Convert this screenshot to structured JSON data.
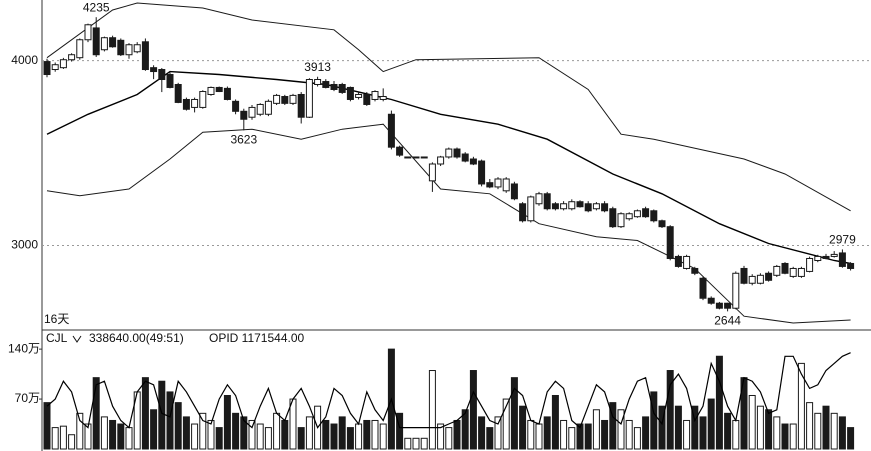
{
  "chart_data": [
    {
      "type": "candlestick",
      "period_label": "16天",
      "ylim": [
        2554,
        4328
      ],
      "yticks": [
        4000,
        3000
      ],
      "grid": true,
      "up_color": "#ffffff",
      "down_color": "#1a1a1a",
      "ohlc": [
        [
          3995,
          4010,
          3910,
          3925
        ],
        [
          3952,
          3990,
          3940,
          3978
        ],
        [
          3962,
          4015,
          3955,
          4005
        ],
        [
          4005,
          4040,
          3995,
          4032
        ],
        [
          4016,
          4120,
          4005,
          4113
        ],
        [
          4113,
          4200,
          4100,
          4194
        ],
        [
          4177,
          4235,
          4020,
          4032
        ],
        [
          4059,
          4130,
          4050,
          4124
        ],
        [
          4124,
          4135,
          4070,
          4075
        ],
        [
          4110,
          4120,
          4025,
          4032
        ],
        [
          4032,
          4095,
          4010,
          4086
        ],
        [
          4048,
          4100,
          4040,
          4086
        ],
        [
          4102,
          4120,
          3945,
          3952
        ],
        [
          3962,
          3975,
          3900,
          3941
        ],
        [
          3952,
          3960,
          3830,
          3898
        ],
        [
          3925,
          3935,
          3850,
          3855
        ],
        [
          3871,
          3880,
          3770,
          3774
        ],
        [
          3790,
          3800,
          3730,
          3737
        ],
        [
          3747,
          3800,
          3720,
          3790
        ],
        [
          3747,
          3840,
          3740,
          3833
        ],
        [
          3817,
          3860,
          3810,
          3855
        ],
        [
          3855,
          3860,
          3830,
          3833
        ],
        [
          3850,
          3860,
          3785,
          3790
        ],
        [
          3780,
          3790,
          3710,
          3726
        ],
        [
          3726,
          3740,
          3623,
          3683
        ],
        [
          3694,
          3760,
          3680,
          3747
        ],
        [
          3710,
          3770,
          3700,
          3763
        ],
        [
          3710,
          3790,
          3700,
          3780
        ],
        [
          3769,
          3820,
          3760,
          3812
        ],
        [
          3806,
          3815,
          3760,
          3769
        ],
        [
          3769,
          3820,
          3760,
          3812
        ],
        [
          3817,
          3830,
          3660,
          3694
        ],
        [
          3694,
          3905,
          3690,
          3898
        ],
        [
          3871,
          3913,
          3860,
          3898
        ],
        [
          3887,
          3900,
          3850,
          3855
        ],
        [
          3871,
          3890,
          3835,
          3844
        ],
        [
          3871,
          3880,
          3820,
          3828
        ],
        [
          3855,
          3860,
          3780,
          3790
        ],
        [
          3801,
          3830,
          3790,
          3817
        ],
        [
          3817,
          3830,
          3755,
          3763
        ],
        [
          3790,
          3840,
          3780,
          3833
        ],
        [
          3790,
          3850,
          3780,
          3806
        ],
        [
          3710,
          3730,
          3520,
          3532
        ],
        [
          3532,
          3540,
          3480,
          3489
        ],
        [
          3479,
          3479,
          3479,
          3479
        ],
        [
          3479,
          3479,
          3479,
          3479
        ],
        [
          3479,
          3479,
          3479,
          3479
        ],
        [
          3350,
          3450,
          3290,
          3441
        ],
        [
          3441,
          3485,
          3430,
          3479
        ],
        [
          3479,
          3530,
          3470,
          3522
        ],
        [
          3522,
          3530,
          3470,
          3479
        ],
        [
          3495,
          3505,
          3450,
          3457
        ],
        [
          3468,
          3480,
          3435,
          3441
        ],
        [
          3457,
          3465,
          3320,
          3333
        ],
        [
          3340,
          3360,
          3310,
          3317
        ],
        [
          3317,
          3370,
          3305,
          3360
        ],
        [
          3296,
          3370,
          3285,
          3360
        ],
        [
          3333,
          3345,
          3245,
          3253
        ],
        [
          3226,
          3235,
          3125,
          3134
        ],
        [
          3134,
          3270,
          3125,
          3263
        ],
        [
          3226,
          3290,
          3215,
          3280
        ],
        [
          3280,
          3290,
          3190,
          3199
        ],
        [
          3226,
          3235,
          3190,
          3199
        ],
        [
          3199,
          3240,
          3190,
          3226
        ],
        [
          3199,
          3250,
          3190,
          3237
        ],
        [
          3237,
          3245,
          3205,
          3210
        ],
        [
          3226,
          3240,
          3180,
          3188
        ],
        [
          3199,
          3235,
          3190,
          3226
        ],
        [
          3226,
          3240,
          3180,
          3188
        ],
        [
          3199,
          3210,
          3095,
          3102
        ],
        [
          3102,
          3180,
          3095,
          3172
        ],
        [
          3145,
          3180,
          3135,
          3172
        ],
        [
          3156,
          3195,
          3150,
          3188
        ],
        [
          3199,
          3210,
          3150,
          3156
        ],
        [
          3188,
          3195,
          3125,
          3134
        ],
        [
          3134,
          3140,
          3095,
          3102
        ],
        [
          3102,
          3110,
          2920,
          2930
        ],
        [
          2941,
          2950,
          2880,
          2887
        ],
        [
          2876,
          2950,
          2870,
          2941
        ],
        [
          2876,
          2885,
          2840,
          2850
        ],
        [
          2823,
          2830,
          2705,
          2715
        ],
        [
          2715,
          2725,
          2680,
          2688
        ],
        [
          2688,
          2695,
          2655,
          2661
        ],
        [
          2688,
          2690,
          2644,
          2661
        ],
        [
          2661,
          2860,
          2655,
          2850
        ],
        [
          2876,
          2890,
          2790,
          2796
        ],
        [
          2796,
          2845,
          2785,
          2833
        ],
        [
          2796,
          2850,
          2790,
          2839
        ],
        [
          2850,
          2860,
          2805,
          2812
        ],
        [
          2839,
          2895,
          2830,
          2887
        ],
        [
          2903,
          2910,
          2845,
          2850
        ],
        [
          2833,
          2885,
          2825,
          2876
        ],
        [
          2833,
          2885,
          2825,
          2876
        ],
        [
          2860,
          2940,
          2855,
          2930
        ],
        [
          2919,
          2950,
          2910,
          2941
        ],
        [
          2941,
          2955,
          2925,
          2930
        ],
        [
          2941,
          2970,
          2935,
          2952
        ],
        [
          2960,
          2979,
          2880,
          2887
        ],
        [
          2903,
          2910,
          2865,
          2876
        ]
      ],
      "bands": [
        {
          "color": "#1a1a1a",
          "x": [
            0,
            8,
            11,
            19,
            25,
            35,
            38,
            41,
            45,
            60,
            66,
            70,
            74,
            85,
            90,
            98
          ],
          "values": [
            4016,
            4274,
            4312,
            4285,
            4220,
            4167,
            4059,
            3941,
            4005,
            4016,
            3844,
            3602,
            3575,
            3468,
            3387,
            3188
          ]
        },
        {
          "color": "#000000",
          "x": [
            0,
            5,
            11,
            15,
            21,
            28,
            34,
            42,
            48,
            55,
            61,
            69,
            75,
            82,
            88,
            96,
            98
          ],
          "values": [
            3602,
            3710,
            3817,
            3941,
            3925,
            3898,
            3871,
            3790,
            3710,
            3656,
            3575,
            3387,
            3280,
            3118,
            3011,
            2919,
            2903
          ]
        },
        {
          "color": "#1a1a1a",
          "x": [
            0,
            4,
            10,
            15,
            19,
            25,
            31,
            36,
            41,
            48,
            54,
            60,
            67,
            72,
            79,
            85,
            91,
            98
          ],
          "values": [
            3296,
            3269,
            3306,
            3468,
            3613,
            3629,
            3575,
            3629,
            3656,
            3306,
            3280,
            3118,
            3048,
            3027,
            2876,
            2618,
            2581,
            2597
          ]
        }
      ],
      "annotations": [
        {
          "label": "4235",
          "value": 4235,
          "x": 6
        },
        {
          "label": "3913",
          "value": 3913,
          "x": 33
        },
        {
          "label": "3623",
          "value": 3623,
          "x": 24
        },
        {
          "label": "2644",
          "value": 2644,
          "x": 83
        },
        {
          "label": "2979",
          "value": 2979,
          "x": 97
        }
      ]
    },
    {
      "type": "bar",
      "indicator": "CJL",
      "readout": "338640.00(49:51)",
      "opid": "OPID 1171544.00",
      "ylim": [
        0,
        164
      ],
      "yticks": [
        {
          "value": 70,
          "label": "70万"
        },
        {
          "value": 140,
          "label": "140万"
        }
      ],
      "values": [
        65,
        30,
        32,
        20,
        50,
        35,
        100,
        45,
        40,
        35,
        30,
        80,
        100,
        55,
        95,
        80,
        65,
        45,
        35,
        50,
        40,
        30,
        75,
        50,
        45,
        40,
        35,
        30,
        50,
        40,
        70,
        30,
        45,
        60,
        40,
        35,
        45,
        30,
        35,
        40,
        40,
        35,
        140,
        50,
        15,
        15,
        15,
        110,
        35,
        30,
        40,
        55,
        110,
        45,
        30,
        45,
        70,
        100,
        60,
        40,
        35,
        45,
        75,
        40,
        30,
        35,
        35,
        55,
        40,
        65,
        55,
        40,
        30,
        45,
        80,
        60,
        110,
        60,
        40,
        60,
        45,
        70,
        130,
        50,
        40,
        100,
        75,
        60,
        55,
        45,
        35,
        35,
        120,
        65,
        50,
        60,
        50,
        45,
        30
      ],
      "series": [
        {
          "color": "#000000",
          "values": [
            60,
            70,
            95,
            80,
            40,
            30,
            90,
            95,
            60,
            40,
            30,
            80,
            95,
            90,
            50,
            45,
            95,
            80,
            60,
            40,
            35,
            70,
            90,
            75,
            40,
            30,
            60,
            85,
            50,
            40,
            70,
            85,
            60,
            30,
            45,
            85,
            75,
            50,
            35,
            80,
            55,
            40,
            70,
            30,
            30,
            30,
            30,
            30,
            30,
            35,
            40,
            50,
            80,
            60,
            40,
            35,
            60,
            85,
            75,
            40,
            35,
            80,
            95,
            85,
            40,
            30,
            60,
            90,
            80,
            45,
            35,
            70,
            95,
            100,
            50,
            35,
            90,
            105,
            85,
            40,
            60,
            120,
            95,
            60,
            40,
            100,
            95,
            80,
            50,
            55,
            130,
            130,
            105,
            85,
            90,
            110,
            120,
            130,
            135
          ]
        }
      ]
    }
  ]
}
